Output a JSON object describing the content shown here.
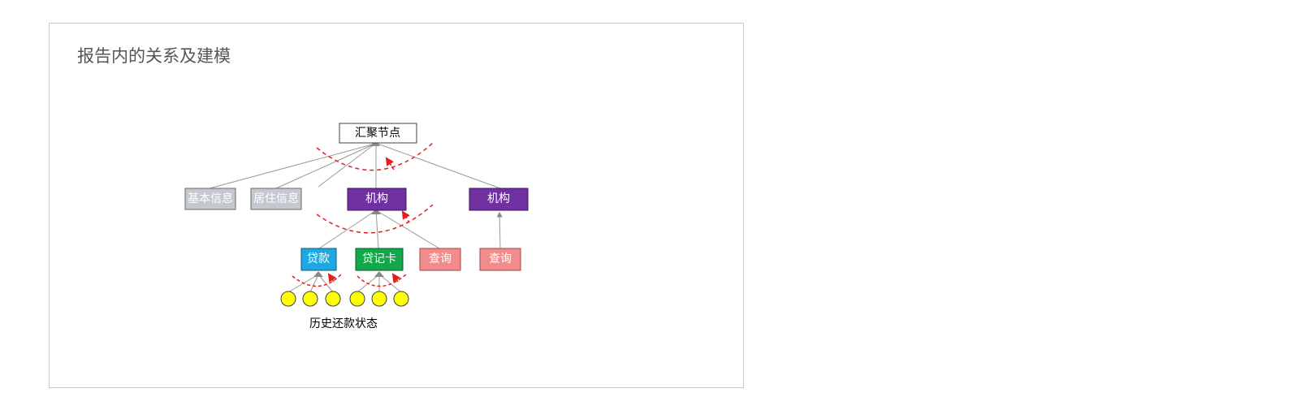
{
  "slide": {
    "title": "报告内的关系及建模"
  },
  "diagram": {
    "root": "汇聚节点",
    "basic_info": "基本信息",
    "residence_info": "居住信息",
    "institution_1": "机构",
    "institution_2": "机构",
    "loan": "贷款",
    "debit_card": "贷记卡",
    "query_1": "查询",
    "query_2": "查询",
    "repayment_caption": "历史还款状态"
  },
  "colors": {
    "institution": "#7030a0",
    "loan": "#1ea7e0",
    "debit_card": "#12a84a",
    "query": "#f28b8b",
    "info": "#c4c8d0",
    "state_circle": "#ffff00",
    "attention_arc": "#e02020",
    "edge": "#999999"
  }
}
